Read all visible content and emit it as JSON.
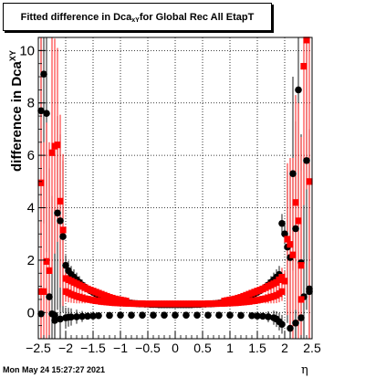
{
  "chart_data": {
    "type": "scatter",
    "title_main": "Fitted difference in Dca",
    "title_sub": "xY",
    "title_rest": " for Global Rec All EtapT",
    "ylabel_main": "difference in Dca",
    "ylabel_sub": "XY",
    "xlabel": "η",
    "xlim": [
      -2.5,
      2.5
    ],
    "ylim": [
      -1.0,
      10.5
    ],
    "x_ticks": [
      -2.5,
      -2,
      -1.5,
      -1,
      -0.5,
      0,
      0.5,
      1,
      1.5,
      2,
      2.5
    ],
    "x_tick_labels": [
      "−2.5",
      "−2",
      "−1.5",
      "−1",
      "−0.5",
      "0",
      "0.5",
      "1",
      "1.5",
      "2",
      "2.5"
    ],
    "y_ticks": [
      0,
      2,
      4,
      6,
      8,
      10
    ],
    "y_tick_labels": [
      "0",
      "2",
      "4",
      "6",
      "8",
      "10"
    ],
    "grid": true,
    "series": [
      {
        "color": "#000000",
        "points": [
          [
            -2.45,
            7.7
          ],
          [
            -2.4,
            9.1
          ],
          [
            -2.35,
            7.6
          ],
          [
            -2.25,
            -0.05
          ],
          [
            -2.2,
            -0.1
          ],
          [
            -2.15,
            3.8
          ],
          [
            -2.1,
            3.5
          ],
          [
            -2.05,
            2.9
          ],
          [
            -2.0,
            1.8
          ],
          [
            -1.95,
            1.6
          ],
          [
            -1.9,
            1.45
          ],
          [
            -1.85,
            1.35
          ],
          [
            -1.8,
            1.25
          ],
          [
            -1.75,
            1.15
          ],
          [
            -1.7,
            1.05
          ],
          [
            -1.65,
            0.97
          ],
          [
            -1.6,
            0.9
          ],
          [
            -1.55,
            0.83
          ],
          [
            -1.5,
            0.77
          ],
          [
            -1.45,
            0.72
          ],
          [
            -1.4,
            0.67
          ],
          [
            -1.35,
            0.62
          ],
          [
            -1.3,
            0.58
          ],
          [
            -1.25,
            0.55
          ],
          [
            -1.2,
            0.52
          ],
          [
            -1.15,
            0.49
          ],
          [
            -1.1,
            0.46
          ],
          [
            -1.05,
            0.44
          ],
          [
            -1.0,
            0.42
          ],
          [
            -0.95,
            0.4
          ],
          [
            -0.9,
            0.38
          ],
          [
            -0.85,
            0.37
          ],
          [
            -0.8,
            0.36
          ],
          [
            -0.75,
            0.35
          ],
          [
            -0.7,
            0.34
          ],
          [
            -0.65,
            0.33
          ],
          [
            -0.6,
            0.33
          ],
          [
            -0.55,
            0.32
          ],
          [
            -0.5,
            0.32
          ],
          [
            -0.45,
            0.31
          ],
          [
            -0.4,
            0.31
          ],
          [
            -0.35,
            0.31
          ],
          [
            -0.3,
            0.3
          ],
          [
            -0.25,
            0.3
          ],
          [
            -0.2,
            0.3
          ],
          [
            -0.15,
            0.3
          ],
          [
            -0.1,
            0.3
          ],
          [
            -0.05,
            0.3
          ],
          [
            0.0,
            0.3
          ],
          [
            0.05,
            0.3
          ],
          [
            0.1,
            0.3
          ],
          [
            0.15,
            0.3
          ],
          [
            0.2,
            0.3
          ],
          [
            0.25,
            0.3
          ],
          [
            0.3,
            0.3
          ],
          [
            0.35,
            0.31
          ],
          [
            0.4,
            0.31
          ],
          [
            0.45,
            0.31
          ],
          [
            0.5,
            0.32
          ],
          [
            0.55,
            0.32
          ],
          [
            0.6,
            0.33
          ],
          [
            0.65,
            0.33
          ],
          [
            0.7,
            0.34
          ],
          [
            0.75,
            0.35
          ],
          [
            0.8,
            0.36
          ],
          [
            0.85,
            0.37
          ],
          [
            0.9,
            0.38
          ],
          [
            0.95,
            0.4
          ],
          [
            1.0,
            0.42
          ],
          [
            1.05,
            0.44
          ],
          [
            1.1,
            0.46
          ],
          [
            1.15,
            0.49
          ],
          [
            1.2,
            0.52
          ],
          [
            1.25,
            0.55
          ],
          [
            1.3,
            0.58
          ],
          [
            1.35,
            0.62
          ],
          [
            1.4,
            0.67
          ],
          [
            1.45,
            0.72
          ],
          [
            1.5,
            0.77
          ],
          [
            1.55,
            0.83
          ],
          [
            1.6,
            0.9
          ],
          [
            1.65,
            0.97
          ],
          [
            1.7,
            1.05
          ],
          [
            1.75,
            1.15
          ],
          [
            1.8,
            1.25
          ],
          [
            1.85,
            1.35
          ],
          [
            1.9,
            1.45
          ],
          [
            1.95,
            3.4
          ],
          [
            2.0,
            3.0
          ],
          [
            2.05,
            2.5
          ],
          [
            2.1,
            2.1
          ],
          [
            2.15,
            5.3
          ],
          [
            2.2,
            3.2
          ],
          [
            2.25,
            8.5
          ],
          [
            2.3,
            1.9
          ],
          [
            2.35,
            0.6
          ],
          [
            2.4,
            5.8
          ],
          [
            2.45,
            0.8
          ],
          [
            -2.45,
            -0.05
          ],
          [
            -2.3,
            0.6
          ],
          [
            -2.2,
            -0.3
          ],
          [
            -2.1,
            -0.25
          ],
          [
            -2.0,
            -0.2
          ],
          [
            -1.95,
            -0.18
          ],
          [
            -1.9,
            -0.17
          ],
          [
            -1.8,
            -0.16
          ],
          [
            -1.7,
            -0.15
          ],
          [
            -1.6,
            -0.14
          ],
          [
            -1.5,
            -0.13
          ],
          [
            -1.4,
            -0.12
          ],
          [
            -1.2,
            -0.11
          ],
          [
            -1.0,
            -0.1
          ],
          [
            -0.8,
            -0.1
          ],
          [
            -0.6,
            -0.1
          ],
          [
            -0.4,
            -0.1
          ],
          [
            -0.2,
            -0.1
          ],
          [
            0.0,
            -0.1
          ],
          [
            0.2,
            -0.1
          ],
          [
            0.4,
            -0.1
          ],
          [
            0.6,
            -0.1
          ],
          [
            0.8,
            -0.1
          ],
          [
            1.0,
            -0.1
          ],
          [
            1.2,
            -0.11
          ],
          [
            1.4,
            -0.12
          ],
          [
            1.5,
            -0.13
          ],
          [
            1.6,
            -0.14
          ],
          [
            1.7,
            -0.16
          ],
          [
            1.8,
            -0.2
          ],
          [
            1.85,
            -0.25
          ],
          [
            1.9,
            -0.35
          ],
          [
            1.95,
            -0.45
          ],
          [
            2.1,
            -0.6
          ],
          [
            2.2,
            -0.4
          ],
          [
            2.3,
            -0.2
          ],
          [
            2.45,
            0.9
          ]
        ]
      },
      {
        "color": "#ff0000",
        "points": [
          [
            -2.45,
            4.95
          ],
          [
            -2.4,
            0.8
          ],
          [
            -2.35,
            1.95
          ],
          [
            -2.25,
            6.1
          ],
          [
            -2.2,
            6.35
          ],
          [
            -2.15,
            6.4
          ],
          [
            -2.1,
            4.25
          ],
          [
            -2.05,
            3.15
          ],
          [
            -2.0,
            0.8
          ],
          [
            -1.95,
            0.75
          ],
          [
            -1.9,
            0.7
          ],
          [
            -1.85,
            0.66
          ],
          [
            -1.8,
            0.62
          ],
          [
            -1.75,
            0.59
          ],
          [
            -1.7,
            0.56
          ],
          [
            -1.65,
            0.53
          ],
          [
            -1.6,
            0.51
          ],
          [
            -1.55,
            0.49
          ],
          [
            -1.5,
            0.47
          ],
          [
            -1.45,
            0.45
          ],
          [
            -1.4,
            0.44
          ],
          [
            -1.35,
            0.42
          ],
          [
            -1.3,
            0.41
          ],
          [
            -1.25,
            0.4
          ],
          [
            -1.2,
            0.39
          ],
          [
            -1.15,
            0.38
          ],
          [
            -1.1,
            0.37
          ],
          [
            -1.05,
            0.37
          ],
          [
            -1.0,
            0.36
          ],
          [
            -0.95,
            0.36
          ],
          [
            -0.9,
            0.35
          ],
          [
            -0.85,
            0.35
          ],
          [
            -0.8,
            0.35
          ],
          [
            -0.75,
            0.34
          ],
          [
            -0.7,
            0.34
          ],
          [
            -0.65,
            0.34
          ],
          [
            -0.6,
            0.34
          ],
          [
            -0.55,
            0.33
          ],
          [
            -0.5,
            0.33
          ],
          [
            -0.45,
            0.33
          ],
          [
            -0.4,
            0.33
          ],
          [
            -0.35,
            0.33
          ],
          [
            -0.3,
            0.33
          ],
          [
            -0.25,
            0.33
          ],
          [
            -0.2,
            0.33
          ],
          [
            -0.15,
            0.33
          ],
          [
            -0.1,
            0.33
          ],
          [
            -0.05,
            0.33
          ],
          [
            0.0,
            0.33
          ],
          [
            0.05,
            0.33
          ],
          [
            0.1,
            0.33
          ],
          [
            0.15,
            0.33
          ],
          [
            0.2,
            0.33
          ],
          [
            0.25,
            0.33
          ],
          [
            0.3,
            0.33
          ],
          [
            0.35,
            0.33
          ],
          [
            0.4,
            0.33
          ],
          [
            0.45,
            0.33
          ],
          [
            0.5,
            0.33
          ],
          [
            0.55,
            0.33
          ],
          [
            0.6,
            0.34
          ],
          [
            0.65,
            0.34
          ],
          [
            0.7,
            0.34
          ],
          [
            0.75,
            0.34
          ],
          [
            0.8,
            0.35
          ],
          [
            0.85,
            0.35
          ],
          [
            0.9,
            0.35
          ],
          [
            0.95,
            0.36
          ],
          [
            1.0,
            0.36
          ],
          [
            1.05,
            0.37
          ],
          [
            1.1,
            0.37
          ],
          [
            1.15,
            0.38
          ],
          [
            1.2,
            0.39
          ],
          [
            1.25,
            0.4
          ],
          [
            1.3,
            0.41
          ],
          [
            1.35,
            0.42
          ],
          [
            1.4,
            0.44
          ],
          [
            1.45,
            0.45
          ],
          [
            1.5,
            0.47
          ],
          [
            1.55,
            0.49
          ],
          [
            1.6,
            0.51
          ],
          [
            1.65,
            0.53
          ],
          [
            1.7,
            0.56
          ],
          [
            1.75,
            0.59
          ],
          [
            1.8,
            0.62
          ],
          [
            1.85,
            0.66
          ],
          [
            1.9,
            0.72
          ],
          [
            1.95,
            0.8
          ],
          [
            2.05,
            2.8
          ],
          [
            2.1,
            2.6
          ],
          [
            2.15,
            2.2
          ],
          [
            2.2,
            4.2
          ],
          [
            2.25,
            3.5
          ],
          [
            2.3,
            1.8
          ],
          [
            2.35,
            9.4
          ],
          [
            2.4,
            10.4
          ],
          [
            2.45,
            5.0
          ],
          [
            -2.45,
            0.8
          ],
          [
            -2.3,
            1.6
          ],
          [
            -2.0,
            1.3
          ],
          [
            -1.95,
            1.25
          ],
          [
            -1.9,
            1.2
          ],
          [
            -1.85,
            1.15
          ],
          [
            -1.8,
            1.1
          ],
          [
            -1.75,
            1.05
          ],
          [
            -1.7,
            1.0
          ],
          [
            -1.65,
            0.95
          ],
          [
            -1.6,
            0.9
          ],
          [
            -1.55,
            0.86
          ],
          [
            -1.5,
            0.82
          ],
          [
            -1.45,
            0.78
          ],
          [
            -1.4,
            0.74
          ],
          [
            -1.35,
            0.7
          ],
          [
            -1.3,
            0.66
          ],
          [
            -1.25,
            0.62
          ],
          [
            -1.2,
            0.58
          ],
          [
            -1.15,
            0.55
          ],
          [
            -1.1,
            0.52
          ],
          [
            -1.05,
            0.5
          ],
          [
            -1.0,
            0.48
          ],
          [
            -0.95,
            0.46
          ],
          [
            -0.9,
            0.44
          ],
          [
            0.9,
            0.44
          ],
          [
            0.95,
            0.46
          ],
          [
            1.0,
            0.48
          ],
          [
            1.05,
            0.5
          ],
          [
            1.1,
            0.52
          ],
          [
            1.15,
            0.55
          ],
          [
            1.2,
            0.58
          ],
          [
            1.25,
            0.62
          ],
          [
            1.3,
            0.66
          ],
          [
            1.35,
            0.7
          ],
          [
            1.4,
            0.74
          ],
          [
            1.45,
            0.78
          ],
          [
            1.5,
            0.82
          ],
          [
            1.55,
            0.86
          ],
          [
            1.6,
            0.9
          ],
          [
            1.65,
            0.95
          ],
          [
            1.7,
            1.0
          ],
          [
            1.75,
            1.05
          ],
          [
            1.8,
            1.1
          ],
          [
            1.85,
            1.15
          ],
          [
            1.9,
            1.25
          ],
          [
            1.95,
            1.35
          ],
          [
            2.0,
            1.2
          ],
          [
            2.3,
            0.5
          ]
        ]
      }
    ]
  },
  "footer": {
    "date": "Mon May 24 15:27:27 2021"
  }
}
